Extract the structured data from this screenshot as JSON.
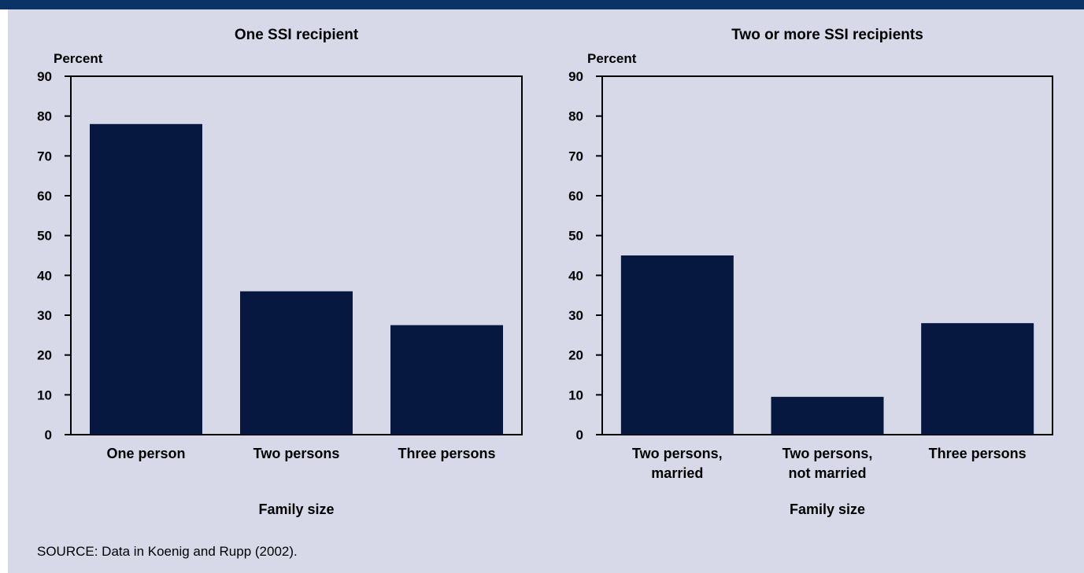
{
  "colors": {
    "top_bar": "#0b3366",
    "background": "#d7d9e9",
    "bar": "#061840",
    "axis": "#000000"
  },
  "source": "SOURCE:  Data in Koenig and Rupp (2002).",
  "chart_data": [
    {
      "type": "bar",
      "title": "One SSI recipient",
      "ylabel": "Percent",
      "xlabel": "Family size",
      "ylim": [
        0,
        90
      ],
      "yticks": [
        0,
        10,
        20,
        30,
        40,
        50,
        60,
        70,
        80,
        90
      ],
      "grid": false,
      "categories": [
        [
          "One person"
        ],
        [
          "Two persons"
        ],
        [
          "Three persons"
        ]
      ],
      "values": [
        78,
        36,
        27.5
      ]
    },
    {
      "type": "bar",
      "title": "Two or more SSI recipients",
      "ylabel": "Percent",
      "xlabel": "Family size",
      "ylim": [
        0,
        90
      ],
      "yticks": [
        0,
        10,
        20,
        30,
        40,
        50,
        60,
        70,
        80,
        90
      ],
      "grid": false,
      "categories": [
        [
          "Two persons,",
          "married"
        ],
        [
          "Two persons,",
          "not married"
        ],
        [
          "Three persons"
        ]
      ],
      "values": [
        45,
        9.5,
        28
      ]
    }
  ]
}
